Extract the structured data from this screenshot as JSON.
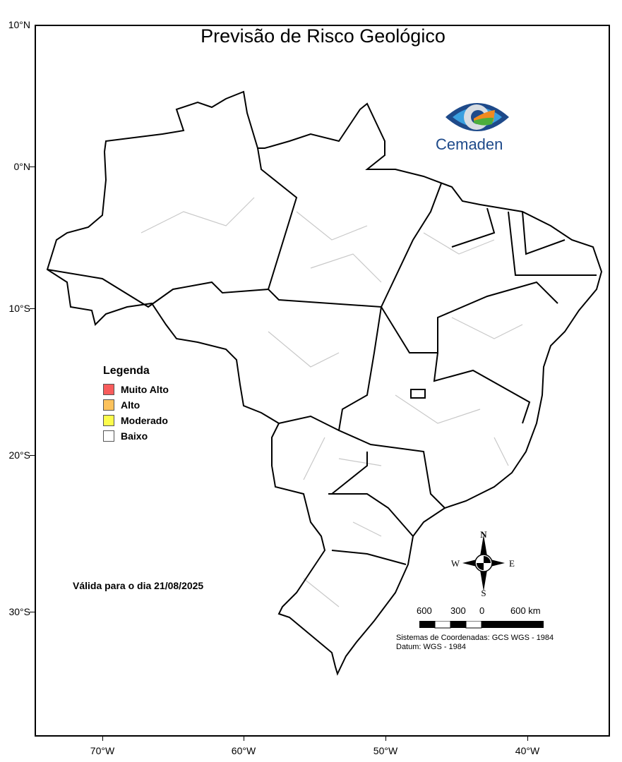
{
  "title": "Previsão de Risco Geológico",
  "logo": {
    "text": "Cemaden"
  },
  "axes": {
    "lat_ticks": [
      "10°N",
      "0°N",
      "10°S",
      "20°S",
      "30°S"
    ],
    "lon_ticks": [
      "70°W",
      "60°W",
      "50°W",
      "40°W"
    ]
  },
  "legend": {
    "title": "Legenda",
    "items": [
      {
        "label": "Muito Alto",
        "color": "#f85c5c"
      },
      {
        "label": "Alto",
        "color": "#fcc25c"
      },
      {
        "label": "Moderado",
        "color": "#fcfc4c"
      },
      {
        "label": "Baixo",
        "color": "#ffffff"
      }
    ]
  },
  "validity": "Válida para o dia 21/08/2025",
  "compass": {
    "n": "N",
    "s": "S",
    "e": "E",
    "w": "W"
  },
  "scale": {
    "labels": [
      "600",
      "300",
      "0",
      "600 km"
    ]
  },
  "coordinate_system": {
    "line1": "Sistemas de Coordenadas: GCS WGS - 1984",
    "line2": "Datum: WGS - 1984"
  }
}
